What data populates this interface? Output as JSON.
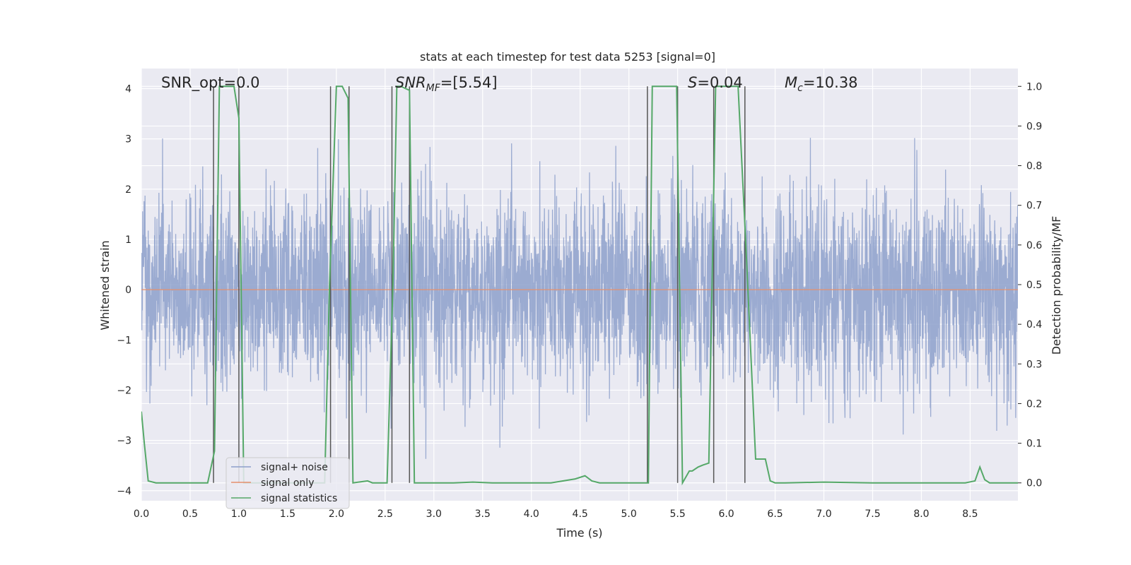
{
  "chart_data": {
    "type": "line",
    "title": "stats at each timestep for test data 5253 [signal=0]",
    "xlabel": "Time (s)",
    "ylabel_left": "Whitened strain",
    "ylabel_right": "Detection probability/MF",
    "xlim": [
      0.0,
      8.99
    ],
    "ylim_left": [
      -4.2,
      4.4
    ],
    "ylim_right": [
      -0.045,
      1.045
    ],
    "grid": true,
    "legend_position": "lower-left",
    "x_ticks": [
      "0.0",
      "0.5",
      "1.0",
      "1.5",
      "2.0",
      "2.5",
      "3.0",
      "3.5",
      "4.0",
      "4.5",
      "5.0",
      "5.5",
      "6.0",
      "6.5",
      "7.0",
      "7.5",
      "8.0",
      "8.5"
    ],
    "y_ticks_left": [
      "4",
      "3",
      "2",
      "1",
      "0",
      "−1",
      "−2",
      "−3",
      "−4"
    ],
    "y_ticks_right": [
      "1.0",
      "0.9",
      "0.8",
      "0.7",
      "0.6",
      "0.5",
      "0.4",
      "0.3",
      "0.2",
      "0.1",
      "0.0"
    ],
    "annotations": {
      "snr_opt": "SNR_opt=0.0",
      "snr_mf_main": "SNR",
      "snr_mf_sub": "MF",
      "snr_mf_value": "=[5.54]",
      "s_main": "S",
      "s_value": "=0.04",
      "mc_main": "M",
      "mc_sub": "c",
      "mc_value": "=10.38"
    },
    "detection_windows": [
      [
        0.74,
        1.0
      ],
      [
        1.94,
        2.13
      ],
      [
        2.57,
        2.75
      ],
      [
        5.19,
        5.5
      ],
      [
        5.87,
        6.19
      ]
    ],
    "series": [
      {
        "name": "signal+ noise",
        "color": "#8da0cb",
        "description_values": "noise band approx -1.5 to 1.5 with spikes to about ±3.9",
        "noise_std": 0.95,
        "max_abs": 3.95
      },
      {
        "name": "signal only",
        "color": "#e5906d",
        "x": [
          0.0,
          8.99
        ],
        "y": [
          0.0,
          0.0
        ]
      },
      {
        "name": "signal statistics",
        "color": "#55a868",
        "axis": "right",
        "x": [
          0.0,
          0.03,
          0.07,
          0.15,
          0.3,
          0.5,
          0.68,
          0.75,
          0.8,
          0.9,
          0.95,
          1.0,
          1.05,
          1.88,
          1.93,
          2.0,
          2.06,
          2.12,
          2.17,
          2.32,
          2.37,
          2.52,
          2.58,
          2.62,
          2.66,
          2.75,
          2.8,
          2.88,
          3.0,
          3.2,
          3.4,
          3.6,
          4.0,
          4.2,
          4.45,
          4.55,
          4.62,
          4.7,
          5.0,
          5.2,
          5.24,
          5.3,
          5.49,
          5.55,
          5.62,
          5.65,
          5.71,
          5.76,
          5.82,
          5.89,
          5.93,
          6.0,
          6.12,
          6.2,
          6.3,
          6.4,
          6.45,
          6.5,
          6.6,
          7.0,
          7.5,
          8.0,
          8.45,
          8.55,
          8.6,
          8.65,
          8.7,
          8.75,
          8.9,
          8.99
        ],
        "y": [
          0.18,
          0.1,
          0.005,
          0.0,
          0.0,
          0.0,
          0.0,
          0.08,
          1.0,
          1.0,
          1.0,
          0.92,
          0.0,
          0.0,
          0.5,
          1.0,
          1.0,
          0.97,
          0.0,
          0.005,
          0.0,
          0.0,
          0.5,
          1.0,
          1.0,
          0.99,
          0.0,
          0.0,
          0.0,
          0.0,
          0.002,
          0.0,
          0.0,
          0.0,
          0.01,
          0.018,
          0.005,
          0.0,
          0.0,
          0.0,
          1.0,
          1.0,
          1.0,
          0.0,
          0.03,
          0.03,
          0.04,
          0.045,
          0.05,
          1.0,
          1.0,
          1.0,
          1.0,
          0.6,
          0.06,
          0.06,
          0.005,
          0.0,
          0.0,
          0.002,
          0.0,
          0.0,
          0.0,
          0.005,
          0.04,
          0.008,
          0.0,
          0.0,
          0.0,
          0.0
        ]
      }
    ]
  }
}
